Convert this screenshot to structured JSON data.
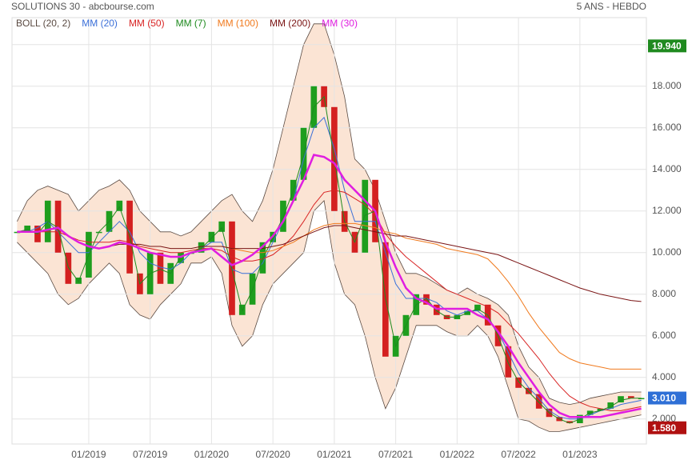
{
  "chart_data": {
    "type": "candlestick",
    "title": "SOLUTIONS 30 - abcbourse.com",
    "subtitle": "5 ANS - HEBDO",
    "categories": [
      null,
      null,
      null,
      null,
      null,
      null,
      null,
      "01/2019",
      null,
      null,
      null,
      null,
      null,
      "07/2019",
      null,
      null,
      null,
      null,
      null,
      "01/2020",
      null,
      null,
      null,
      null,
      null,
      "07/2020",
      null,
      null,
      null,
      null,
      null,
      "01/2021",
      null,
      null,
      null,
      null,
      null,
      "07/2021",
      null,
      null,
      null,
      null,
      null,
      "01/2022",
      null,
      null,
      null,
      null,
      null,
      "07/2022",
      null,
      null,
      null,
      null,
      null,
      "01/2023",
      null,
      null,
      null,
      null,
      null,
      null
    ],
    "ylim": [
      0.8,
      21.3
    ],
    "yticks": [
      {
        "value": 2,
        "label": "2.000"
      },
      {
        "value": 4,
        "label": "4.000"
      },
      {
        "value": 6,
        "label": "6.000"
      },
      {
        "value": 8,
        "label": "8.000"
      },
      {
        "value": 10,
        "label": "10.000"
      },
      {
        "value": 12,
        "label": "12.000"
      },
      {
        "value": 14,
        "label": "14.000"
      },
      {
        "value": 16,
        "label": "16.000"
      },
      {
        "value": 18,
        "label": "18.000"
      },
      {
        "value": 20,
        "label": "20.000"
      }
    ],
    "grid": true,
    "candles": {
      "up_color": "#1e9e1e",
      "down_color": "#d42020",
      "close": [
        11.0,
        11.3,
        10.5,
        12.5,
        10.0,
        8.5,
        8.8,
        11.0,
        11.0,
        12.0,
        12.5,
        9.0,
        8.0,
        10.0,
        8.5,
        9.5,
        10.0,
        10.0,
        10.5,
        11.0,
        11.5,
        7.0,
        7.5,
        9.0,
        10.5,
        11.0,
        12.5,
        13.5,
        16.0,
        18.0,
        17.0,
        12.0,
        11.0,
        10.0,
        13.5,
        10.5,
        5.0,
        6.0,
        7.0,
        8.0,
        7.5,
        7.0,
        6.8,
        7.0,
        7.2,
        7.5,
        6.5,
        5.5,
        4.0,
        3.5,
        3.2,
        2.5,
        2.1,
        1.9,
        1.8,
        2.2,
        2.4,
        2.5,
        2.8,
        3.1,
        3.0,
        3.01
      ]
    },
    "bands": {
      "name": "BOLL (20, 2)",
      "color": "#5a4a42",
      "fill": "#fbe4d4",
      "upper": [
        11.5,
        12.5,
        13.0,
        13.2,
        13.0,
        12.8,
        12.0,
        12.5,
        13.0,
        13.2,
        13.5,
        13.0,
        12.0,
        11.5,
        11.0,
        11.0,
        10.8,
        11.0,
        11.5,
        12.0,
        12.5,
        12.8,
        12.0,
        11.5,
        12.5,
        14.0,
        16.0,
        18.0,
        20.0,
        21.0,
        21.0,
        19.5,
        17.5,
        14.5,
        14.0,
        13.0,
        11.5,
        10.0,
        9.0,
        9.0,
        8.8,
        8.5,
        8.2,
        8.0,
        8.3,
        8.0,
        7.8,
        7.5,
        7.0,
        5.5,
        4.5,
        4.0,
        3.0,
        2.8,
        2.7,
        2.8,
        3.0,
        3.1,
        3.2,
        3.3,
        3.3,
        3.3
      ],
      "lower": [
        10.5,
        10.0,
        9.5,
        9.0,
        8.0,
        7.5,
        7.8,
        8.5,
        9.0,
        9.5,
        9.0,
        7.5,
        7.0,
        6.8,
        7.5,
        8.0,
        8.5,
        9.5,
        9.5,
        9.8,
        9.0,
        6.5,
        5.5,
        6.0,
        7.5,
        8.5,
        9.0,
        9.5,
        10.0,
        12.0,
        12.5,
        9.5,
        8.0,
        7.5,
        6.0,
        4.0,
        2.5,
        3.5,
        5.0,
        6.5,
        6.5,
        6.5,
        6.2,
        6.0,
        6.0,
        6.5,
        6.0,
        5.0,
        3.5,
        2.0,
        1.9,
        1.6,
        1.4,
        1.4,
        1.5,
        1.6,
        1.7,
        1.8,
        1.9,
        2.0,
        2.1,
        2.2
      ]
    },
    "series": [
      {
        "name": "MM (20)",
        "color": "#3b6fd8",
        "values": [
          11.0,
          11.0,
          11.2,
          11.5,
          11.0,
          10.5,
          10.0,
          10.0,
          10.5,
          11.0,
          11.5,
          11.0,
          10.0,
          9.5,
          9.3,
          9.2,
          9.5,
          10.0,
          10.2,
          10.5,
          10.5,
          9.2,
          9.0,
          9.0,
          9.5,
          10.5,
          11.5,
          12.5,
          14.5,
          16.0,
          16.5,
          15.0,
          13.0,
          11.5,
          11.5,
          11.5,
          10.0,
          8.5,
          7.8,
          7.8,
          7.8,
          7.6,
          7.2,
          7.0,
          7.2,
          7.2,
          6.8,
          6.2,
          5.2,
          4.2,
          3.5,
          3.0,
          2.4,
          2.1,
          2.0,
          2.0,
          2.2,
          2.4,
          2.5,
          2.7,
          2.8,
          2.9
        ]
      },
      {
        "name": "MM (50)",
        "color": "#d82424",
        "values": [
          11.0,
          11.0,
          11.0,
          11.0,
          11.0,
          10.8,
          10.6,
          10.5,
          10.5,
          10.5,
          10.6,
          10.5,
          10.3,
          10.2,
          10.1,
          10.0,
          10.0,
          10.1,
          10.2,
          10.2,
          10.1,
          9.8,
          9.6,
          9.6,
          9.7,
          9.9,
          10.3,
          10.8,
          11.5,
          12.3,
          12.9,
          13.0,
          12.9,
          12.6,
          12.3,
          11.8,
          10.9,
          10.3,
          9.8,
          9.4,
          9.0,
          8.6,
          8.2,
          8.0,
          7.8,
          7.6,
          7.4,
          7.1,
          6.6,
          6.1,
          5.5,
          4.9,
          4.2,
          3.6,
          3.1,
          2.8,
          2.6,
          2.5,
          2.4,
          2.4,
          2.5,
          2.6
        ]
      },
      {
        "name": "MM (7)",
        "color": "#1e8a1e",
        "values": [
          11.0,
          11.1,
          10.9,
          11.5,
          11.2,
          9.3,
          8.6,
          9.9,
          11.0,
          11.5,
          12.2,
          10.8,
          8.5,
          9.0,
          9.2,
          9.0,
          9.8,
          10.0,
          10.2,
          10.7,
          11.2,
          9.2,
          7.2,
          8.2,
          9.7,
          10.7,
          11.7,
          13.0,
          14.7,
          17.0,
          17.5,
          14.5,
          11.5,
          10.5,
          11.8,
          12.0,
          7.8,
          5.5,
          6.5,
          7.5,
          7.8,
          7.2,
          6.9,
          6.9,
          7.1,
          7.3,
          7.0,
          6.0,
          4.7,
          3.8,
          3.3,
          2.8,
          2.3,
          2.0,
          1.8,
          2.0,
          2.3,
          2.4,
          2.6,
          2.9,
          3.0,
          3.0
        ]
      },
      {
        "name": "MM (100)",
        "color": "#f07a1e",
        "values": [
          null,
          null,
          null,
          null,
          null,
          null,
          null,
          null,
          null,
          null,
          null,
          null,
          null,
          null,
          null,
          null,
          null,
          null,
          null,
          10.3,
          10.3,
          10.2,
          10.1,
          10.0,
          10.0,
          10.1,
          10.3,
          10.5,
          10.8,
          11.1,
          11.3,
          11.4,
          11.4,
          11.4,
          11.3,
          11.2,
          11.0,
          10.9,
          10.7,
          10.6,
          10.5,
          10.4,
          10.2,
          10.1,
          10.0,
          9.9,
          9.7,
          9.2,
          8.6,
          7.9,
          7.1,
          6.4,
          5.8,
          5.2,
          4.9,
          4.7,
          4.6,
          4.5,
          4.4,
          4.4,
          4.4,
          4.4
        ]
      },
      {
        "name": "MM (200)",
        "color": "#7a1414",
        "values": [
          null,
          null,
          null,
          null,
          null,
          null,
          null,
          null,
          10.2,
          10.3,
          10.4,
          10.4,
          10.4,
          10.3,
          10.3,
          10.2,
          10.2,
          10.2,
          10.3,
          10.3,
          10.3,
          10.2,
          10.2,
          10.2,
          10.2,
          10.3,
          10.4,
          10.6,
          10.8,
          11.0,
          11.2,
          11.3,
          11.3,
          11.2,
          11.1,
          11.0,
          10.9,
          10.8,
          10.8,
          10.7,
          10.6,
          10.5,
          10.4,
          10.3,
          10.2,
          10.1,
          10.0,
          9.9,
          9.7,
          9.5,
          9.3,
          9.1,
          8.9,
          8.7,
          8.5,
          8.3,
          8.15,
          8.0,
          7.9,
          7.8,
          7.7,
          7.65
        ]
      },
      {
        "name": "MM (30)",
        "color": "#e01ee0",
        "width": 2.5,
        "values": [
          11.0,
          11.0,
          11.0,
          11.1,
          11.2,
          10.8,
          10.5,
          10.3,
          10.2,
          10.3,
          10.5,
          10.4,
          10.2,
          10.0,
          9.9,
          9.8,
          9.8,
          10.0,
          10.1,
          10.2,
          9.8,
          9.4,
          9.6,
          9.9,
          10.3,
          10.8,
          11.5,
          12.5,
          13.5,
          14.7,
          14.6,
          14.3,
          13.5,
          13.0,
          12.5,
          12.0,
          10.5,
          9.3,
          8.3,
          7.8,
          7.6,
          7.3,
          7.3,
          7.3,
          7.3,
          7.0,
          6.8,
          6.2,
          5.5,
          4.7,
          4.0,
          3.3,
          2.7,
          2.3,
          2.1,
          2.1,
          2.1,
          2.1,
          2.2,
          2.3,
          2.4,
          2.5
        ]
      }
    ],
    "price_tags": [
      {
        "value": 19.94,
        "label": "19.940",
        "color": "#1f8a1f"
      },
      {
        "value": 3.01,
        "label": "3.010",
        "color": "#2e6fd6"
      },
      {
        "value": 1.58,
        "label": "1.580",
        "color": "#b01010"
      }
    ]
  }
}
